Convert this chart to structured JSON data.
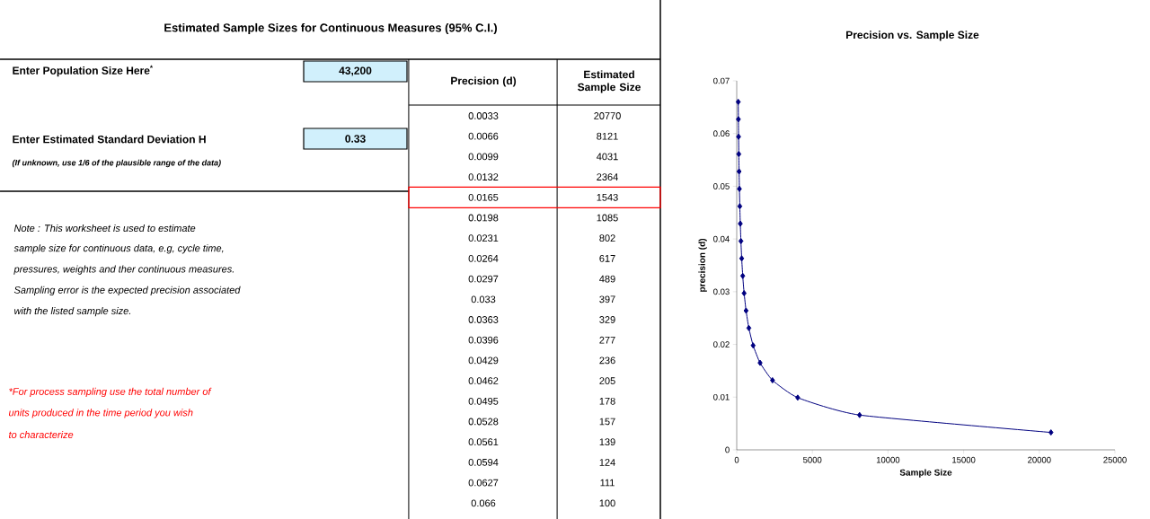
{
  "chart_data": {
    "type": "line",
    "title": "Precision vs. Sample Size",
    "xlabel": "Sample Size",
    "ylabel": "precision (d)",
    "x": [
      20770,
      8121,
      4031,
      2364,
      1543,
      1085,
      802,
      617,
      489,
      397,
      329,
      277,
      236,
      205,
      178,
      157,
      139,
      124,
      111,
      100
    ],
    "values": [
      0.0033,
      0.0066,
      0.0099,
      0.0132,
      0.0165,
      0.0198,
      0.0231,
      0.0264,
      0.0297,
      0.033,
      0.0363,
      0.0396,
      0.0429,
      0.0462,
      0.0495,
      0.0528,
      0.0561,
      0.0594,
      0.0627,
      0.066
    ],
    "color": "#000080",
    "marker": "diamond",
    "line_style": "solid",
    "xlim": [
      0,
      25000
    ],
    "ylim": [
      0,
      0.07
    ],
    "xticks": [
      0,
      5000,
      10000,
      15000,
      20000,
      25000
    ],
    "yticks": [
      0,
      0.01,
      0.02,
      0.03,
      0.04,
      0.05,
      0.06,
      0.07
    ],
    "annotations": [
      "Estimated Sample Sizes for Continuous Measures (95% C.I.)",
      "Enter Population Size Here$^{*}$",
      "43,200",
      "Enter Estimated Standard Deviation H",
      "0.33",
      "(If unknown, use 1/6 of the plausible range of the data)",
      "Precision (d)",
      "Estimated Sample Size",
      "Note : This worksheet is used to estimate",
      "sample size for continuous data, e.g, cycle time,",
      "pressures, weights and ther continuous measures.",
      "Sampling error is the expected precision associated",
      "with the listed sample size.",
      "*For process sampling use the total number of",
      "units produced in the time period you wish",
      "to characterize",
      "0.0033",
      "20770",
      "0.0066",
      "8121",
      "0.0099",
      "4031",
      "0.0132",
      "2364",
      "0.0165",
      "1543",
      "0.0198",
      "1085",
      "0.0231",
      "802",
      "0.0264",
      "617",
      "0.0297",
      "489",
      "0.033",
      "397",
      "0.0363",
      "329",
      "0.0396",
      "277",
      "0.0429",
      "236",
      "0.0462",
      "205",
      "0.0495",
      "178",
      "0.0528",
      "157",
      "0.0561",
      "139",
      "0.0594",
      "124",
      "0.0627",
      "111",
      "0.066",
      "100"
    ]
  }
}
